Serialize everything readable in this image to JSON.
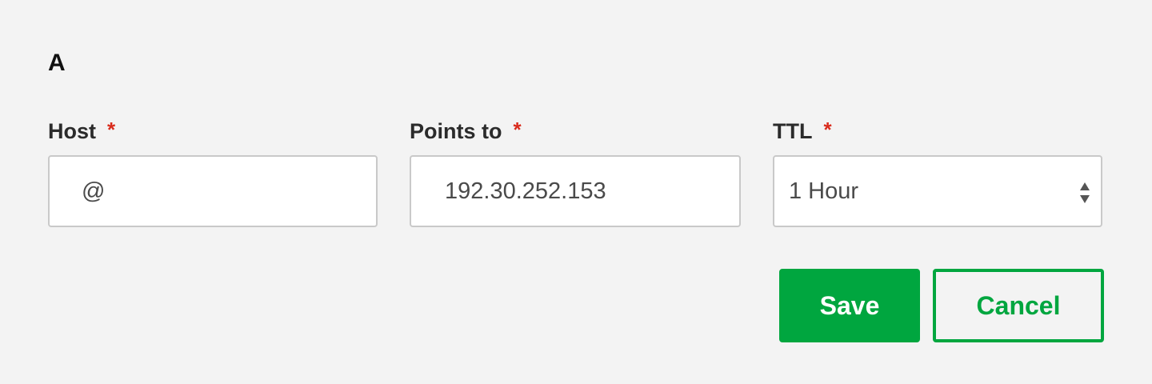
{
  "record": {
    "type_label": "A"
  },
  "fields": {
    "host": {
      "label": "Host",
      "required_mark": "*",
      "value": "@"
    },
    "points_to": {
      "label": "Points to",
      "required_mark": "*",
      "value": "192.30.252.153"
    },
    "ttl": {
      "label": "TTL",
      "required_mark": "*",
      "selected": "1 Hour",
      "icon": "select-updown-icon"
    }
  },
  "actions": {
    "save_label": "Save",
    "cancel_label": "Cancel"
  },
  "colors": {
    "background": "#f3f3f3",
    "accent": "#00a63f",
    "required": "#d92b1c"
  }
}
